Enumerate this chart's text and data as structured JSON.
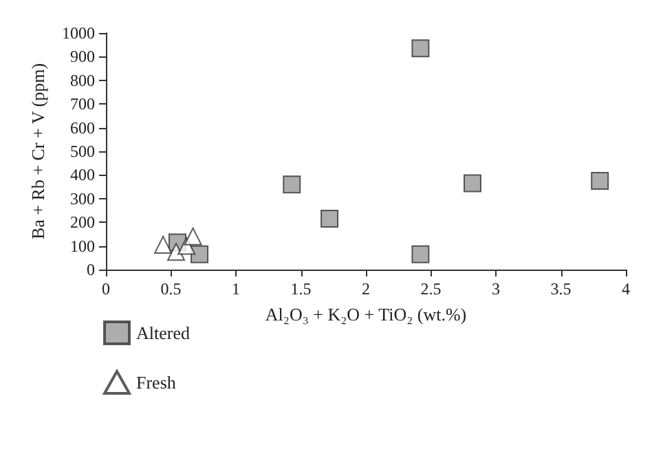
{
  "chart_data": {
    "type": "scatter",
    "xlabel": "Al₂O₃ + K₂O + TiO₂ (wt.%)",
    "ylabel": "Ba + Rb + Cr + V (ppm)",
    "xlim": [
      0,
      4
    ],
    "xticks": [
      0,
      0.5,
      1,
      1.5,
      2,
      2.5,
      3,
      3.5,
      4
    ],
    "ylim": [
      0,
      1000
    ],
    "yticks": [
      0,
      100,
      200,
      300,
      400,
      500,
      600,
      700,
      800,
      900,
      1000
    ],
    "grid": false,
    "legend": "bottom left",
    "series": [
      {
        "name": "Altered",
        "color": "#999999",
        "marker": "square",
        "x": [
          0.55,
          0.72,
          1.43,
          1.72,
          2.42,
          2.42,
          2.82,
          3.8
        ],
        "values": [
          115,
          65,
          360,
          215,
          935,
          65,
          365,
          375
        ]
      },
      {
        "name": "Fresh",
        "color": "#ffffff",
        "marker": "triangle",
        "x": [
          0.44,
          0.54,
          0.62,
          0.67
        ],
        "values": [
          105,
          75,
          100,
          140
        ]
      }
    ]
  }
}
